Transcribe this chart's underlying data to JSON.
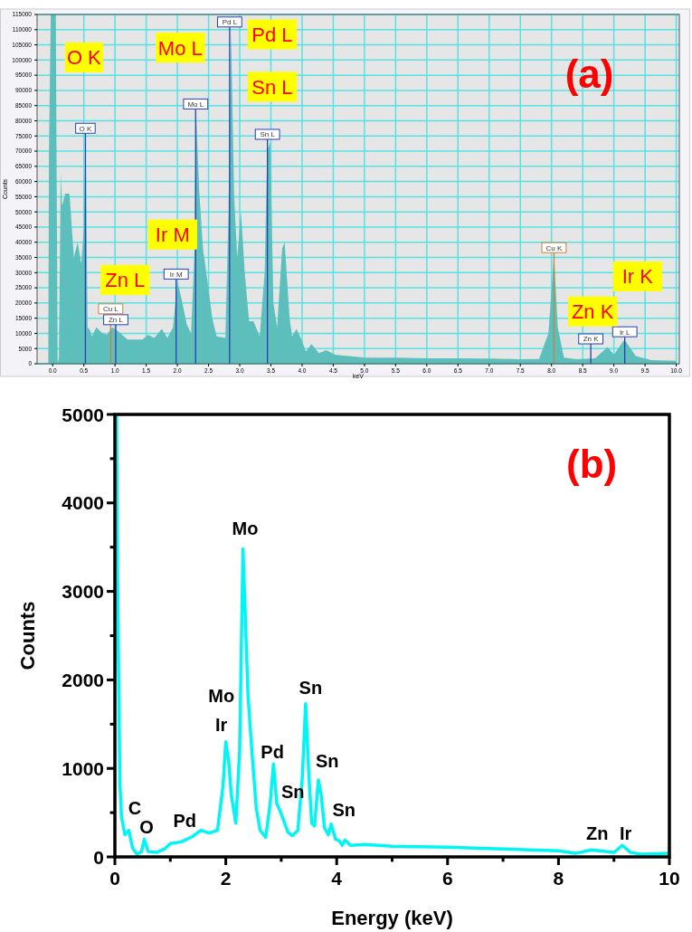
{
  "chart_data": [
    {
      "type": "area",
      "xlabel": "keV",
      "ylabel": "Counts",
      "color": "#5cbfbb",
      "grid": true,
      "xlim": [
        -0.25,
        10.05
      ],
      "ylim": [
        0,
        115000
      ],
      "xticks": [
        {
          "value": 0,
          "label": "0.0"
        },
        {
          "value": 0.5,
          "label": "0.5"
        },
        {
          "value": 1,
          "label": "1.0"
        },
        {
          "value": 1.5,
          "label": "1.5"
        },
        {
          "value": 2,
          "label": "2.0"
        },
        {
          "value": 2.5,
          "label": "2.5"
        },
        {
          "value": 3,
          "label": "3.0"
        },
        {
          "value": 3.5,
          "label": "3.5"
        },
        {
          "value": 4,
          "label": "4.0"
        },
        {
          "value": 4.5,
          "label": "4.5"
        },
        {
          "value": 5,
          "label": "5.0"
        },
        {
          "value": 5.5,
          "label": "5.5"
        },
        {
          "value": 6,
          "label": "6.0"
        },
        {
          "value": 6.5,
          "label": "6.5"
        },
        {
          "value": 7,
          "label": "7.0"
        },
        {
          "value": 7.5,
          "label": "7.5"
        },
        {
          "value": 8,
          "label": "8.0"
        },
        {
          "value": 8.5,
          "label": "8.5"
        },
        {
          "value": 9,
          "label": "9.0"
        },
        {
          "value": 9.5,
          "label": "9.5"
        },
        {
          "value": 10,
          "label": "10.0"
        }
      ],
      "yticks": [
        0,
        5000,
        10000,
        15000,
        20000,
        25000,
        30000,
        35000,
        40000,
        45000,
        50000,
        55000,
        60000,
        65000,
        70000,
        75000,
        80000,
        85000,
        90000,
        95000,
        100000,
        105000,
        110000,
        115000
      ],
      "x": [
        -0.25,
        -0.07,
        -0.06,
        -0.03,
        0.0,
        0.05,
        0.08,
        0.1,
        0.13,
        0.15,
        0.2,
        0.27,
        0.34,
        0.4,
        0.46,
        0.5,
        0.53,
        0.56,
        0.6,
        0.63,
        0.7,
        0.8,
        0.87,
        0.96,
        1.06,
        1.2,
        1.44,
        1.53,
        1.63,
        1.75,
        1.84,
        1.93,
        2.0,
        2.06,
        2.15,
        2.22,
        2.27,
        2.3,
        2.35,
        2.41,
        2.49,
        2.56,
        2.63,
        2.77,
        2.82,
        2.86,
        2.91,
        2.96,
        3.02,
        3.08,
        3.15,
        3.22,
        3.32,
        3.4,
        3.44,
        3.49,
        3.54,
        3.6,
        3.68,
        3.72,
        3.8,
        3.84,
        3.91,
        3.99,
        4.06,
        4.15,
        4.27,
        4.39,
        4.53,
        5.0,
        5.5,
        6.0,
        6.5,
        7.0,
        7.5,
        7.8,
        7.95,
        8.04,
        8.1,
        8.2,
        8.4,
        8.7,
        8.9,
        9.0,
        9.17,
        9.35,
        9.6,
        10.0
      ],
      "values": [
        0,
        0,
        70000,
        115000,
        115000,
        115000,
        0,
        2000,
        63000,
        52000,
        56000,
        56000,
        35000,
        40000,
        33000,
        45000,
        75000,
        12000,
        11000,
        9000,
        12000,
        10000,
        9500,
        12000,
        10500,
        8000,
        8000,
        9500,
        8500,
        11500,
        8500,
        12000,
        27000,
        22000,
        13000,
        10000,
        35000,
        83000,
        57000,
        38000,
        26000,
        15000,
        9000,
        8500,
        50000,
        110000,
        55000,
        35000,
        50000,
        30000,
        14000,
        14000,
        9000,
        30000,
        70000,
        73000,
        20000,
        12000,
        38000,
        40000,
        15000,
        9000,
        11500,
        8000,
        4000,
        6500,
        3500,
        4500,
        3000,
        2000,
        2000,
        1800,
        1800,
        1700,
        1500,
        1600,
        10000,
        35700,
        12000,
        2000,
        1500,
        1800,
        5500,
        3000,
        8000,
        2500,
        1200,
        1000
      ],
      "ref_lines": [
        {
          "axis": "x",
          "value": 0.525,
          "label": "O K",
          "color": "#2a3fb0"
        },
        {
          "axis": "x",
          "value": 1.012,
          "label": "Zn L",
          "color": "#2a3fb0"
        },
        {
          "axis": "x",
          "value": 0.93,
          "label": "Cu L",
          "color": "#c8823c"
        },
        {
          "axis": "x",
          "value": 1.98,
          "label": "Ir M",
          "color": "#2a3fb0"
        },
        {
          "axis": "x",
          "value": 2.293,
          "label": "Mo L",
          "color": "#2a3fb0"
        },
        {
          "axis": "x",
          "value": 2.838,
          "label": "Pd L",
          "color": "#2a3fb0"
        },
        {
          "axis": "x",
          "value": 3.444,
          "label": "Sn L",
          "color": "#2a3fb0"
        },
        {
          "axis": "x",
          "value": 8.04,
          "label": "Cu K",
          "color": "#c8823c"
        },
        {
          "axis": "x",
          "value": 8.63,
          "label": "Zn K",
          "color": "#2a3fb0"
        },
        {
          "axis": "x",
          "value": 9.175,
          "label": "Ir L",
          "color": "#2a3fb0"
        }
      ],
      "annotations": [
        "(a)",
        "O K",
        "Mo L",
        "Pd L",
        "Sn L",
        "Ir M",
        "Zn L",
        "Zn K",
        "Ir K"
      ]
    },
    {
      "type": "line",
      "xlabel": "Energy (keV)",
      "ylabel": "Counts",
      "color": "#00f5f5",
      "xlim": [
        0,
        10
      ],
      "ylim": [
        0,
        5000
      ],
      "xticks": [
        0,
        {
          "value": 1,
          "label": null
        },
        2,
        {
          "value": 3,
          "label": null
        },
        4,
        {
          "value": 5,
          "label": null
        },
        6,
        {
          "value": 7,
          "label": null
        },
        8,
        {
          "value": 9,
          "label": null
        },
        10
      ],
      "yticks": [
        0,
        {
          "value": 500,
          "label": null
        },
        1000,
        {
          "value": 1500,
          "label": null
        },
        2000,
        {
          "value": 2500,
          "label": null
        },
        3000,
        {
          "value": 3500,
          "label": null
        },
        4000,
        {
          "value": 4500,
          "label": null
        },
        5000
      ],
      "x": [
        0.03,
        0.05,
        0.09,
        0.12,
        0.18,
        0.25,
        0.32,
        0.4,
        0.48,
        0.53,
        0.6,
        0.75,
        0.9,
        1.0,
        1.2,
        1.4,
        1.55,
        1.7,
        1.85,
        1.95,
        2.0,
        2.05,
        2.1,
        2.18,
        2.25,
        2.31,
        2.4,
        2.47,
        2.55,
        2.62,
        2.72,
        2.8,
        2.86,
        2.92,
        2.98,
        3.05,
        3.12,
        3.2,
        3.3,
        3.38,
        3.44,
        3.5,
        3.55,
        3.6,
        3.67,
        3.72,
        3.78,
        3.85,
        3.9,
        3.98,
        4.05,
        4.1,
        4.15,
        4.25,
        4.5,
        5.0,
        6.0,
        7.0,
        7.5,
        8.0,
        8.3,
        8.6,
        9.0,
        9.15,
        9.3,
        9.5,
        10.0
      ],
      "values": [
        5000,
        3000,
        830,
        450,
        250,
        300,
        100,
        30,
        60,
        200,
        60,
        50,
        90,
        150,
        170,
        230,
        300,
        270,
        300,
        800,
        1300,
        1100,
        700,
        380,
        1200,
        3480,
        1840,
        1200,
        550,
        300,
        220,
        600,
        1050,
        600,
        520,
        400,
        280,
        240,
        300,
        900,
        1730,
        900,
        380,
        350,
        870,
        700,
        330,
        250,
        370,
        200,
        180,
        130,
        190,
        130,
        140,
        120,
        110,
        90,
        80,
        70,
        40,
        80,
        50,
        130,
        50,
        30,
        40
      ],
      "annotations": [
        "(b)",
        "C",
        "O",
        "Pd",
        "Mo",
        "Ir",
        "Mo",
        "Pd",
        "Sn",
        "Sn",
        "Sn",
        "Sn",
        "Zn",
        "Ir"
      ]
    }
  ]
}
